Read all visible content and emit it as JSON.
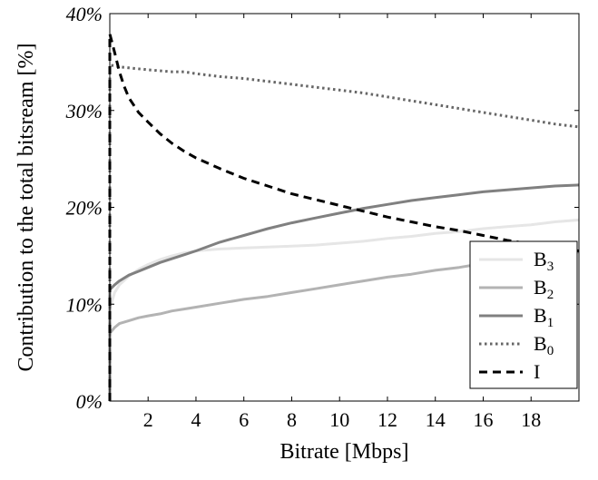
{
  "chart_data": {
    "type": "line",
    "title": "",
    "xlabel": "Bitrate [Mbps]",
    "ylabel": "Contribution to the total bitsream [%]",
    "xlim": [
      0.4,
      20
    ],
    "ylim": [
      0,
      40
    ],
    "xticks": [
      2,
      4,
      6,
      8,
      10,
      12,
      14,
      16,
      18
    ],
    "xtick_labels": [
      "2",
      "4",
      "6",
      "8",
      "10",
      "12",
      "14",
      "16",
      "18"
    ],
    "yticks": [
      0,
      10,
      20,
      30,
      40
    ],
    "ytick_labels": [
      "0%",
      "10%",
      "20%",
      "30%",
      "40%"
    ],
    "grid": false,
    "legend_position": "bottom-right",
    "series": [
      {
        "name": "B",
        "subscript": "3",
        "color": "#e6e6e6",
        "style": "solid",
        "x": [
          0.4,
          0.6,
          0.8,
          1.2,
          1.6,
          2,
          2.5,
          3,
          3.5,
          4,
          5,
          6,
          7,
          8,
          9,
          10,
          11,
          12,
          13,
          14,
          15,
          16,
          17,
          18,
          19,
          20
        ],
        "y": [
          9.5,
          11.2,
          12.0,
          12.9,
          13.6,
          14.1,
          14.6,
          15.0,
          15.3,
          15.5,
          15.7,
          15.8,
          15.9,
          16.0,
          16.1,
          16.3,
          16.5,
          16.8,
          17.0,
          17.3,
          17.5,
          17.8,
          18.0,
          18.2,
          18.5,
          18.7
        ]
      },
      {
        "name": "B",
        "subscript": "2",
        "color": "#b3b3b3",
        "style": "solid",
        "x": [
          0.4,
          0.6,
          0.8,
          1.2,
          1.6,
          2,
          2.5,
          3,
          3.5,
          4,
          5,
          6,
          7,
          8,
          9,
          10,
          11,
          12,
          13,
          14,
          15,
          16,
          17,
          18,
          19,
          20
        ],
        "y": [
          7.0,
          7.6,
          8.0,
          8.3,
          8.6,
          8.8,
          9.0,
          9.3,
          9.5,
          9.7,
          10.1,
          10.5,
          10.8,
          11.2,
          11.6,
          12.0,
          12.4,
          12.8,
          13.1,
          13.5,
          13.8,
          14.2,
          14.5,
          14.8,
          15.1,
          15.4
        ]
      },
      {
        "name": "B",
        "subscript": "1",
        "color": "#808080",
        "style": "solid",
        "x": [
          0.4,
          0.6,
          0.8,
          1.2,
          1.6,
          2,
          2.5,
          3,
          3.5,
          4,
          5,
          6,
          7,
          8,
          9,
          10,
          11,
          12,
          13,
          14,
          15,
          16,
          17,
          18,
          19,
          20
        ],
        "y": [
          11.5,
          12.0,
          12.4,
          13.0,
          13.4,
          13.8,
          14.3,
          14.7,
          15.1,
          15.5,
          16.4,
          17.1,
          17.8,
          18.4,
          18.9,
          19.4,
          19.9,
          20.3,
          20.7,
          21.0,
          21.3,
          21.6,
          21.8,
          22.0,
          22.2,
          22.3
        ]
      },
      {
        "name": "B",
        "subscript": "0",
        "color": "#666666",
        "style": "dotted",
        "x": [
          0.4,
          0.8,
          1.2,
          2,
          3,
          3.5,
          4,
          5,
          6,
          7,
          8,
          9,
          10,
          11,
          12,
          13,
          14,
          15,
          16,
          17,
          18,
          19,
          20
        ],
        "y": [
          34.7,
          34.5,
          34.4,
          34.2,
          34.0,
          34.0,
          33.8,
          33.5,
          33.3,
          33.0,
          32.7,
          32.4,
          32.1,
          31.8,
          31.4,
          31.0,
          30.6,
          30.2,
          29.8,
          29.4,
          29.0,
          28.6,
          28.3
        ]
      },
      {
        "name": "I",
        "subscript": "",
        "color": "#000000",
        "style": "dashed",
        "x": [
          0.4,
          0.6,
          0.8,
          1.0,
          1.2,
          1.6,
          2,
          2.5,
          3,
          3.5,
          4,
          5,
          6,
          7,
          8,
          9,
          10,
          11,
          12,
          13,
          14,
          15,
          16,
          17,
          18,
          19,
          20
        ],
        "y": [
          37.9,
          36.0,
          34.0,
          32.5,
          31.3,
          29.8,
          28.8,
          27.6,
          26.6,
          25.8,
          25.1,
          24.0,
          23.0,
          22.2,
          21.4,
          20.8,
          20.2,
          19.6,
          19.0,
          18.5,
          18.0,
          17.6,
          17.1,
          16.6,
          16.2,
          15.8,
          15.5
        ]
      }
    ]
  }
}
